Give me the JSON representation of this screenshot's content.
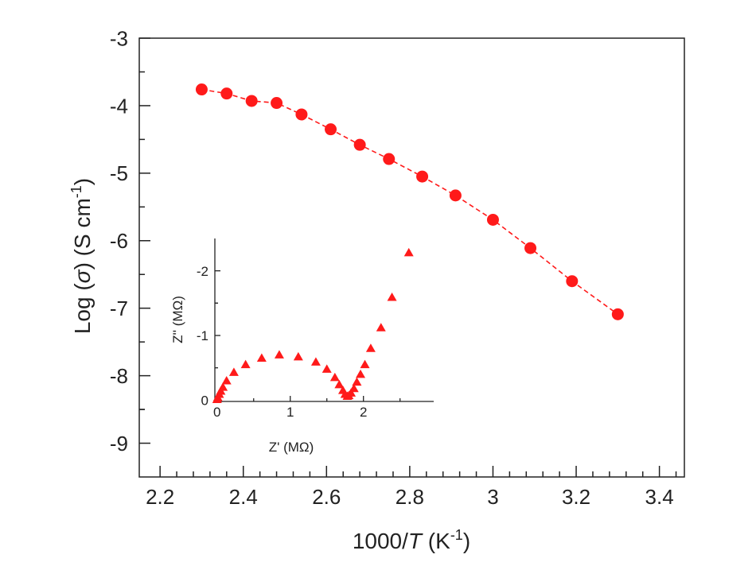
{
  "chart_data": [
    {
      "type": "line",
      "xlabel": "1000/T (K⁻¹)",
      "xlabel_parts": {
        "prefix": "1000/",
        "italic": "T",
        "unit_open": " (K",
        "sup": "-1",
        "unit_close": ")"
      },
      "ylabel_parts": {
        "prefix": "Log (",
        "italic": "σ",
        "mid": ") (S cm",
        "sup": "-1",
        "close": ")"
      },
      "xlim": [
        2.15,
        3.46
      ],
      "ylim": [
        -9.5,
        -3
      ],
      "xticks": [
        2.2,
        2.4,
        2.6,
        2.8,
        3,
        3.2,
        3.4
      ],
      "xtick_labels": [
        "2.2",
        "2.4",
        "2.6",
        "2.8",
        "3",
        "3.2",
        "3.4"
      ],
      "yticks": [
        -3,
        -4,
        -5,
        -6,
        -7,
        -8,
        -9
      ],
      "ytick_labels": [
        "-3",
        "-4",
        "-5",
        "-6",
        "-7",
        "-8",
        "-9"
      ],
      "color": "#ff1a1a",
      "marker": "circle",
      "line_style": "dashed",
      "x": [
        2.3,
        2.36,
        2.42,
        2.48,
        2.54,
        2.61,
        2.68,
        2.75,
        2.83,
        2.91,
        3.0,
        3.09,
        3.19,
        3.3
      ],
      "y": [
        -3.76,
        -3.82,
        -3.93,
        -3.96,
        -4.13,
        -4.35,
        -4.58,
        -4.79,
        -5.05,
        -5.33,
        -5.69,
        -6.11,
        -6.6,
        -7.09
      ]
    },
    {
      "type": "scatter",
      "role": "inset",
      "xlabel": "Z' (MΩ)",
      "ylabel": "Z'' (MΩ)",
      "xlim": [
        -0.03,
        2.96
      ],
      "ylim": [
        0.02,
        -2.5
      ],
      "xticks": [
        0,
        1,
        2
      ],
      "xtick_labels": [
        "0",
        "1",
        "2"
      ],
      "yticks": [
        0,
        -1,
        -2
      ],
      "ytick_labels": [
        "0",
        "-1",
        "-2"
      ],
      "color": "#ff1a1a",
      "marker": "triangle",
      "x": [
        0.0,
        0.01,
        0.03,
        0.05,
        0.08,
        0.13,
        0.23,
        0.39,
        0.61,
        0.85,
        1.11,
        1.35,
        1.5,
        1.61,
        1.67,
        1.72,
        1.75,
        1.78,
        1.8,
        1.83,
        1.87,
        1.91,
        1.96,
        2.02,
        2.1,
        2.24,
        2.39,
        2.62
      ],
      "y": [
        -0.01,
        -0.04,
        -0.09,
        -0.14,
        -0.2,
        -0.3,
        -0.43,
        -0.55,
        -0.65,
        -0.7,
        -0.67,
        -0.59,
        -0.48,
        -0.35,
        -0.24,
        -0.15,
        -0.09,
        -0.06,
        -0.07,
        -0.11,
        -0.18,
        -0.28,
        -0.4,
        -0.55,
        -0.8,
        -1.12,
        -1.59,
        -2.28
      ]
    }
  ]
}
